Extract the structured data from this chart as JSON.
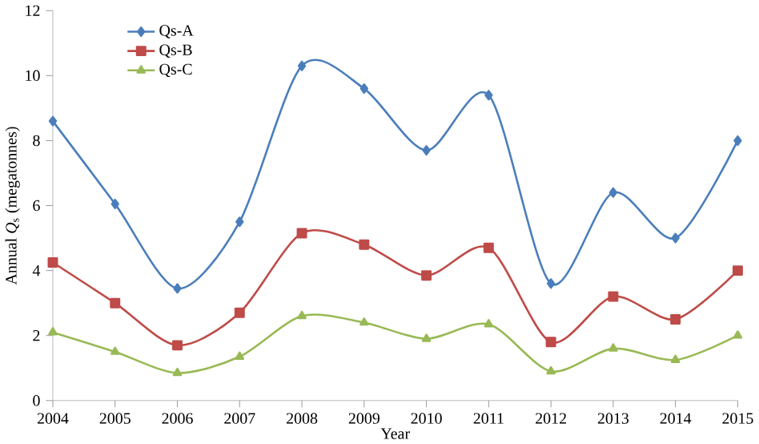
{
  "chart_data": {
    "type": "line",
    "xlabel": "Year",
    "ylabel": "Annual *Q*$_{s}$ (megatonnes)",
    "categories": [
      "2004",
      "2005",
      "2006",
      "2007",
      "2008",
      "2009",
      "2010",
      "2011",
      "2012",
      "2013",
      "2014",
      "2015"
    ],
    "series": [
      {
        "name": "Qs-A",
        "color": "#4a7ebb",
        "marker": "diamond",
        "values": [
          8.6,
          6.05,
          3.45,
          5.5,
          10.3,
          9.6,
          7.7,
          9.4,
          3.6,
          6.4,
          5.0,
          8.0
        ]
      },
      {
        "name": "Qs-B",
        "color": "#be4b48",
        "marker": "square",
        "values": [
          4.25,
          3.0,
          1.7,
          2.7,
          5.15,
          4.8,
          3.85,
          4.7,
          1.8,
          3.2,
          2.5,
          4.0
        ]
      },
      {
        "name": "Qs-C",
        "color": "#98b954",
        "marker": "triangle",
        "values": [
          2.1,
          1.5,
          0.85,
          1.35,
          2.6,
          2.4,
          1.9,
          2.35,
          0.9,
          1.6,
          1.25,
          2.0
        ]
      }
    ],
    "ylim": [
      0,
      12
    ],
    "yticks": [
      0,
      2,
      4,
      6,
      8,
      10,
      12
    ],
    "grid": false,
    "legend": "top left",
    "line_style": "solid"
  }
}
